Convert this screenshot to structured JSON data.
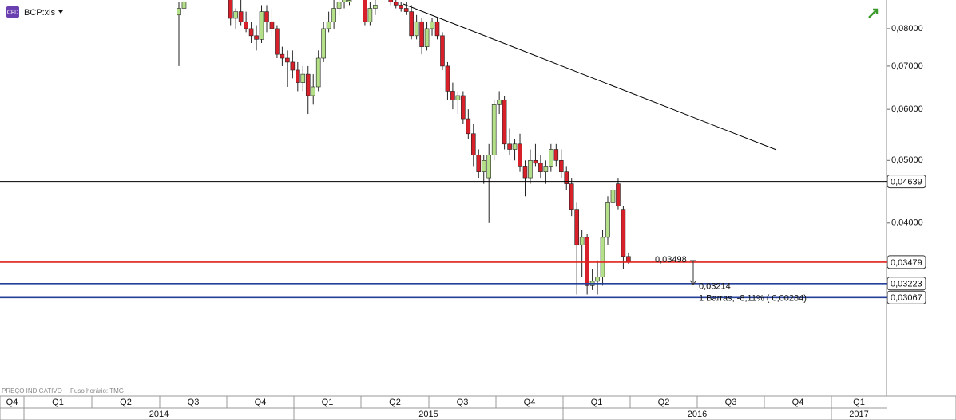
{
  "chart_data": {
    "type": "candlestick",
    "header": "BCP:xls",
    "badge": "CFD",
    "footer": [
      "PREÇO INDICATIVO",
      "Fuso horário: TMG"
    ],
    "categories": [
      null,
      null,
      null,
      null,
      null,
      null,
      null,
      null,
      null,
      null,
      null,
      null,
      null,
      null,
      null,
      null,
      null,
      null,
      null,
      null,
      null,
      null,
      null,
      null,
      null,
      null,
      null,
      null,
      null,
      null,
      null,
      null,
      null,
      null,
      null,
      null,
      null,
      null,
      null,
      null,
      null,
      null,
      null,
      null,
      null,
      null,
      null,
      null,
      null,
      null,
      null,
      null,
      null,
      null,
      null,
      null,
      null,
      null,
      null,
      null,
      null,
      null,
      null,
      null,
      null,
      null,
      null,
      null,
      null,
      null,
      null,
      null,
      null,
      null,
      null,
      null,
      null,
      null,
      null,
      null,
      null,
      null,
      null,
      null,
      null,
      null,
      null,
      null
    ],
    "open": [
      0.084,
      0.086,
      null,
      null,
      null,
      null,
      null,
      null,
      null,
      null,
      0.089,
      0.083,
      0.085,
      0.082,
      0.08,
      0.078,
      0.077,
      0.085,
      0.082,
      0.08,
      0.073,
      0.072,
      0.071,
      0.069,
      0.066,
      0.068,
      0.063,
      0.065,
      0.072,
      0.08,
      0.082,
      0.086,
      0.088,
      0.088,
      null,
      null,
      0.089,
      0.082,
      0.086,
      null,
      null,
      0.089,
      0.088,
      0.087,
      0.086,
      0.085,
      0.078,
      0.082,
      0.075,
      0.08,
      0.082,
      0.078,
      0.07,
      0.064,
      0.062,
      0.063,
      0.058,
      0.055,
      0.051,
      0.048,
      0.047,
      0.051,
      0.061,
      0.062,
      0.053,
      0.052,
      0.053,
      0.049,
      0.047,
      0.05,
      0.0495,
      0.048,
      0.049,
      0.052,
      0.05,
      0.048,
      0.046,
      0.042,
      0.037,
      0.038,
      0.032,
      0.0325,
      0.033,
      0.038,
      0.043,
      0.046,
      0.042,
      0.0355
    ],
    "high": [
      0.088,
      0.089,
      null,
      null,
      null,
      null,
      null,
      null,
      null,
      null,
      0.09,
      0.086,
      0.089,
      0.085,
      0.082,
      0.081,
      0.087,
      0.087,
      0.086,
      0.081,
      0.075,
      0.074,
      0.074,
      0.071,
      0.07,
      0.07,
      0.068,
      0.074,
      0.082,
      0.085,
      0.089,
      0.09,
      0.09,
      0.089,
      null,
      null,
      0.0895,
      0.088,
      0.089,
      null,
      null,
      0.09,
      0.089,
      0.088,
      0.088,
      0.087,
      0.084,
      0.083,
      0.082,
      0.083,
      0.083,
      0.079,
      0.071,
      0.066,
      0.064,
      0.064,
      0.06,
      0.057,
      0.052,
      0.051,
      0.053,
      0.062,
      0.064,
      0.063,
      0.056,
      0.054,
      0.055,
      0.05,
      0.052,
      0.053,
      0.051,
      0.05,
      0.053,
      0.053,
      0.052,
      0.049,
      0.047,
      0.043,
      0.039,
      0.0385,
      0.034,
      0.035,
      0.039,
      0.044,
      0.046,
      0.047,
      0.0425,
      0.036
    ],
    "low": [
      0.07,
      0.084,
      null,
      null,
      null,
      null,
      null,
      null,
      null,
      null,
      0.081,
      0.08,
      0.081,
      0.079,
      0.076,
      0.074,
      0.076,
      0.079,
      0.078,
      0.072,
      0.07,
      0.065,
      0.067,
      0.064,
      0.064,
      0.059,
      0.061,
      0.064,
      0.071,
      0.079,
      0.08,
      0.084,
      0.086,
      0.087,
      null,
      null,
      0.081,
      0.081,
      0.084,
      null,
      null,
      0.087,
      0.086,
      0.085,
      0.084,
      0.077,
      0.077,
      0.073,
      0.074,
      0.078,
      0.077,
      0.069,
      0.062,
      0.06,
      0.059,
      0.057,
      0.054,
      0.049,
      0.047,
      0.046,
      0.04,
      0.05,
      0.059,
      0.052,
      0.051,
      0.05,
      0.048,
      0.044,
      0.046,
      0.049,
      0.047,
      0.046,
      0.048,
      0.049,
      0.047,
      0.045,
      0.041,
      0.031,
      0.033,
      0.031,
      0.0315,
      0.031,
      0.032,
      0.037,
      0.042,
      0.042,
      0.034,
      0.0346
    ],
    "close": [
      0.086,
      0.088,
      null,
      null,
      null,
      null,
      null,
      null,
      null,
      null,
      0.083,
      0.085,
      0.082,
      0.08,
      0.078,
      0.077,
      0.085,
      0.082,
      0.08,
      0.073,
      0.072,
      0.071,
      0.069,
      0.066,
      0.068,
      0.063,
      0.065,
      0.072,
      0.08,
      0.082,
      0.086,
      0.088,
      0.089,
      0.0885,
      null,
      null,
      0.082,
      0.086,
      0.087,
      null,
      null,
      0.088,
      0.087,
      0.086,
      0.085,
      0.078,
      0.082,
      0.075,
      0.08,
      0.082,
      0.078,
      0.07,
      0.064,
      0.062,
      0.063,
      0.058,
      0.055,
      0.051,
      0.048,
      0.05,
      0.051,
      0.061,
      0.062,
      0.053,
      0.052,
      0.053,
      0.049,
      0.047,
      0.05,
      0.0495,
      0.048,
      0.049,
      0.052,
      0.05,
      0.048,
      0.046,
      0.042,
      0.037,
      0.038,
      0.032,
      0.0325,
      0.033,
      0.038,
      0.043,
      0.045,
      0.0425,
      0.0355,
      0.0348
    ],
    "up_color": "#b5e08a",
    "down_color": "#d8202a",
    "ylim": [
      0.0217,
      0.0886
    ],
    "log_scale": true,
    "yticks": [
      {
        "value": 0.08,
        "label": "0,08000"
      },
      {
        "value": 0.07,
        "label": "0,07000"
      },
      {
        "value": 0.06,
        "label": "0,06000"
      },
      {
        "value": 0.05,
        "label": "0,05000"
      },
      {
        "value": 0.04,
        "label": "0,04000"
      }
    ],
    "quarters": [
      "Q4",
      "Q1",
      "Q2",
      "Q3",
      "Q4",
      "Q1",
      "Q2",
      "Q3",
      "Q4",
      "Q1",
      "Q2",
      "Q3",
      "Q4",
      "Q1"
    ],
    "years": [
      "2014",
      "2015",
      "2016",
      "2017"
    ],
    "levels": [
      {
        "value": 0.04639,
        "label": "0,04639",
        "color": "#000000"
      },
      {
        "value": 0.03479,
        "label": "0,03479",
        "color": "#e0201a"
      },
      {
        "value": 0.03223,
        "label": "0,03223",
        "color": "#24409a"
      },
      {
        "value": 0.03067,
        "label": "0,03067",
        "color": "#24409a"
      }
    ],
    "measure": {
      "from": {
        "value": 0.03498,
        "label": "0,03498"
      },
      "to": {
        "value": 0.03214,
        "label": "0,03214"
      },
      "text": "1 Barras, -8,11% ( 0,00284)"
    }
  }
}
